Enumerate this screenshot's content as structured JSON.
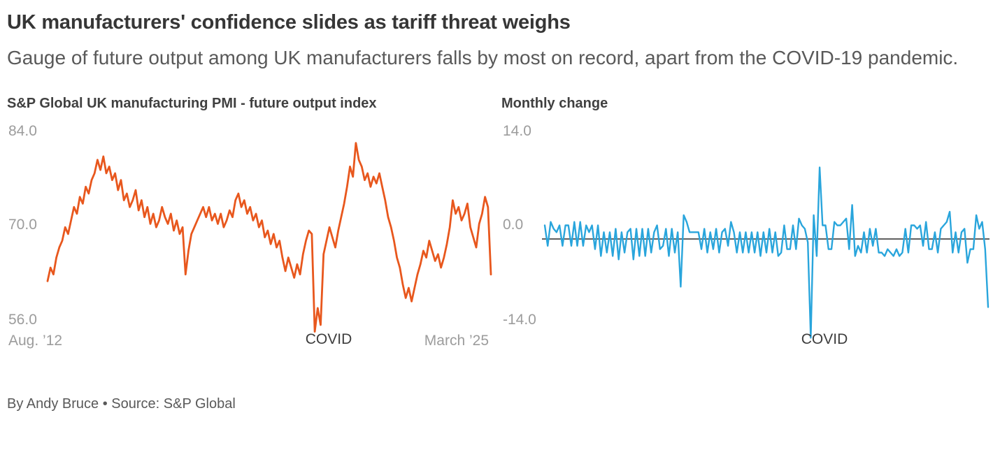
{
  "header": {
    "title": "UK manufacturers' confidence slides as tariff threat weighs",
    "subtitle": "Gauge of future output among UK manufacturers falls by most on record, apart from the COVID-19 pandemic."
  },
  "footer": {
    "byline": "By Andy Bruce • Source: S&P Global"
  },
  "colors": {
    "pmi_line": "#E8571D",
    "change_line": "#29A5DC",
    "axis_label": "#9C9C9C",
    "zero_line": "#000000"
  },
  "chart_data": [
    {
      "type": "line",
      "title": "S&P Global UK manufacturing PMI - future output index",
      "series_name": "Future output index",
      "x_start_label": "Aug. ’12",
      "x_end_label": "March ’25",
      "annotation": "COVID",
      "annotation_x": "2020-03",
      "x_range_months": [
        "2012-08",
        "2025-03"
      ],
      "y_ticks": [
        84.0,
        70.0,
        56.0
      ],
      "y_tick_labels": [
        "84.0",
        "70.0",
        "56.0"
      ],
      "ylim": [
        54,
        86
      ],
      "grid": false,
      "legend": "none",
      "values": [
        62.5,
        64.5,
        63.5,
        66.0,
        67.5,
        68.5,
        70.5,
        69.5,
        71.5,
        73.5,
        72.5,
        75.0,
        74.0,
        76.5,
        75.5,
        77.5,
        78.5,
        80.5,
        79.0,
        81.0,
        78.5,
        79.5,
        77.5,
        78.5,
        76.0,
        77.5,
        74.5,
        75.5,
        73.5,
        74.5,
        76.0,
        73.0,
        74.5,
        72.0,
        73.5,
        71.0,
        72.5,
        70.5,
        71.5,
        73.5,
        72.0,
        71.0,
        72.5,
        70.0,
        71.5,
        69.5,
        70.5,
        63.5,
        67.0,
        69.5,
        70.5,
        71.5,
        72.5,
        73.5,
        72.0,
        73.5,
        71.5,
        72.5,
        71.0,
        72.5,
        70.5,
        71.5,
        73.0,
        72.0,
        74.5,
        75.5,
        73.5,
        74.5,
        72.5,
        73.5,
        71.5,
        72.5,
        70.5,
        71.5,
        69.0,
        70.0,
        68.0,
        69.5,
        67.5,
        68.5,
        66.0,
        64.0,
        66.0,
        64.5,
        63.0,
        65.0,
        63.5,
        66.5,
        68.5,
        70.0,
        69.5,
        55.0,
        58.5,
        56.0,
        66.5,
        68.5,
        70.5,
        69.0,
        67.5,
        70.0,
        72.0,
        74.0,
        76.5,
        79.5,
        78.0,
        83.0,
        80.5,
        79.5,
        77.5,
        78.5,
        76.5,
        78.0,
        77.0,
        78.5,
        76.5,
        74.5,
        72.0,
        70.5,
        68.5,
        66.0,
        64.5,
        62.0,
        60.0,
        61.5,
        59.5,
        61.5,
        63.5,
        65.0,
        67.0,
        66.0,
        68.5,
        67.0,
        65.5,
        66.5,
        64.5,
        66.0,
        68.0,
        70.5,
        74.5,
        72.5,
        73.5,
        71.5,
        72.5,
        74.0,
        70.5,
        69.0,
        67.5,
        71.0,
        72.5,
        75.0,
        73.5,
        63.5
      ]
    },
    {
      "type": "line",
      "title": "Monthly change",
      "series_name": "Monthly change in future output index",
      "annotation": "COVID",
      "annotation_x": "2020-03",
      "x_range_months": [
        "2012-09",
        "2025-03"
      ],
      "y_ticks": [
        14.0,
        0.0,
        -14.0
      ],
      "y_tick_labels": [
        "14.0",
        "0.0",
        "-14.0"
      ],
      "ylim": [
        -16,
        15
      ],
      "grid": false,
      "legend": "none",
      "zero_axis": true,
      "values": [
        2.0,
        -1.0,
        2.5,
        1.5,
        1.0,
        2.0,
        -1.0,
        2.0,
        2.0,
        -1.0,
        2.5,
        -1.0,
        2.5,
        -1.0,
        2.0,
        1.0,
        2.0,
        -1.5,
        2.0,
        -2.5,
        1.0,
        -2.0,
        1.0,
        -2.5,
        1.5,
        -3.0,
        1.0,
        -2.0,
        1.0,
        1.5,
        -3.0,
        1.5,
        -2.5,
        1.5,
        -2.5,
        1.5,
        -2.0,
        1.0,
        2.0,
        -1.5,
        -1.0,
        1.5,
        -2.5,
        1.5,
        -2.0,
        1.0,
        -7.0,
        3.5,
        2.5,
        1.0,
        1.0,
        1.0,
        1.0,
        -1.5,
        1.5,
        -2.0,
        1.0,
        -1.5,
        1.5,
        -2.0,
        1.0,
        1.5,
        -1.0,
        2.5,
        1.0,
        -2.0,
        1.0,
        -2.0,
        1.0,
        -2.0,
        1.0,
        -2.0,
        1.0,
        -2.5,
        1.0,
        -2.0,
        1.5,
        -2.0,
        1.0,
        -2.5,
        -2.0,
        2.0,
        -1.5,
        -1.5,
        2.0,
        -1.5,
        3.0,
        2.0,
        1.5,
        -0.5,
        -14.5,
        3.5,
        -2.5,
        10.5,
        2.0,
        2.0,
        -1.5,
        -1.5,
        2.5,
        2.0,
        2.0,
        2.5,
        3.0,
        -1.5,
        5.0,
        -2.5,
        -1.0,
        -2.0,
        1.0,
        -2.0,
        1.5,
        -1.0,
        1.5,
        -2.0,
        -2.0,
        -2.5,
        -1.5,
        -2.0,
        -2.5,
        -1.5,
        -2.5,
        -2.0,
        1.5,
        -2.0,
        2.0,
        2.0,
        1.5,
        2.0,
        -1.0,
        2.5,
        -1.5,
        -1.5,
        1.0,
        -2.0,
        1.5,
        2.0,
        2.5,
        4.0,
        -2.0,
        1.0,
        -2.0,
        1.0,
        1.5,
        -3.5,
        -1.5,
        -1.5,
        3.5,
        1.5,
        2.5,
        -1.5,
        -10.0
      ]
    }
  ]
}
